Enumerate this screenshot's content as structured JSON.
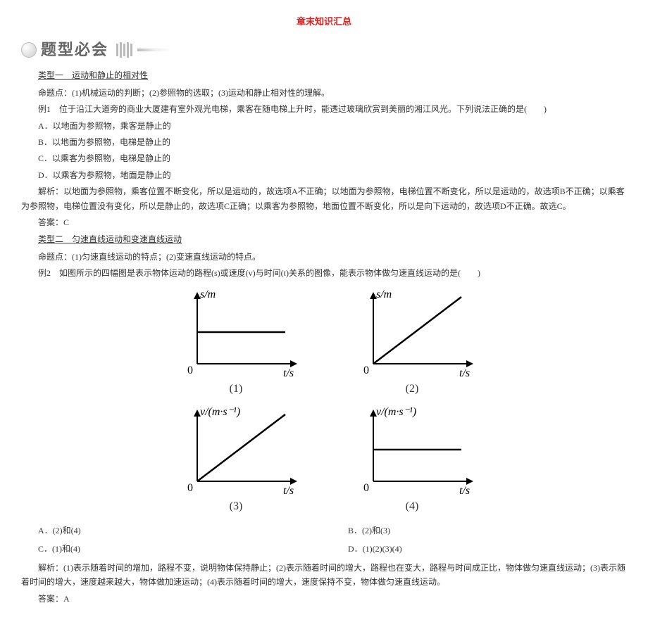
{
  "title_top": "章末知识汇总",
  "section_header_label": "题型必会",
  "type1": {
    "heading": "类型一　运动和静止的相对性",
    "proposition": "命题点：(1)机械运动的判断；(2)参照物的选取；(3)运动和静止相对性的理解。",
    "example_lead": "例1　位于沿江大道旁的商业大厦建有室外观光电梯，乘客在随电梯上升时，能透过玻璃欣赏到美丽的湘江风光。下列说法正确的是(　　)",
    "opts": {
      "a": "A．以地面为参照物，乘客是静止的",
      "b": "B．以地面为参照物，电梯是静止的",
      "c": "C．以乘客为参照物，电梯是静止的",
      "d": "D．以乘客为参照物，地面是静止的"
    },
    "analysis": "解析：以地面为参照物，乘客位置不断变化，所以是运动的，故选项A不正确；以地面为参照物，电梯位置不断变化，所以是运动的，故选项B不正确；以乘客为参照物，电梯位置没有变化，所以是静止的，故选项C正确；以乘客为参照物，地面位置不断变化，所以是向下运动的，故选项D不正确。故选C。",
    "answer": "答案：C"
  },
  "type2": {
    "heading": "类型二　匀速直线运动和变速直线运动",
    "proposition": "命题点：(1)匀速直线运动的特点；(2)变速直线运动的特点。",
    "example_lead": "例2　如图所示的四幅图是表示物体运动的路程(s)或速度(v)与时间(t)关系的图像，能表示物体做匀速直线运动的是(　　)",
    "opts": {
      "a": "A．(2)和(4)",
      "b": "B．(2)和(3)",
      "c": "C．(1)和(4)",
      "d": "D．(1)(2)(3)(4)"
    },
    "analysis": "解析：(1)表示随着时间的增加，路程不变，说明物体保持静止；(2)表示随着时间的增大，路程也在变大，路程与时间成正比，物体做匀速直线运动；(3)表示随着时间的增大，速度越来越大，物体做加速运动；(4)表示随着时间的增大，速度保持不变，物体做匀速直线运动。",
    "answer": "答案：A"
  },
  "graphs": {
    "axis_font": "italic 16px 'Times New Roman'",
    "label_font": "16px 'Times New Roman'",
    "stroke": "#000000",
    "width": 190,
    "height": 130,
    "g1": {
      "ylabel": "s/m",
      "xlabel": "t/s",
      "caption": "(1)",
      "line": "flat"
    },
    "g2": {
      "ylabel": "s/m",
      "xlabel": "t/s",
      "caption": "(2)",
      "line": "ramp"
    },
    "g3": {
      "ylabel": "v/(m·s⁻¹)",
      "xlabel": "t/s",
      "caption": "(3)",
      "line": "ramp"
    },
    "g4": {
      "ylabel": "v/(m·s⁻¹)",
      "xlabel": "t/s",
      "caption": "(4)",
      "line": "flat"
    }
  }
}
